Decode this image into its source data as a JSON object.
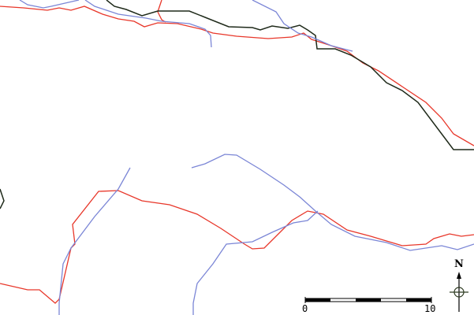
{
  "map": {
    "colors": {
      "road": "#e8372a",
      "river": "#7b86d6",
      "boundary": "#1f2a1a",
      "background": "#ffffff"
    },
    "scale_bar": {
      "start_label": "0",
      "end_label": "10"
    },
    "compass": {
      "label": "N",
      "icon": "north-arrow-icon"
    }
  }
}
